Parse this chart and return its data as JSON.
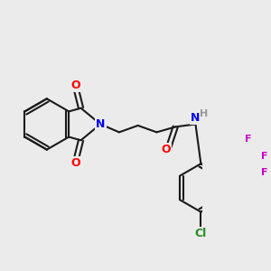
{
  "bg_color": "#ebebeb",
  "bond_color": "#1a1a1a",
  "bond_width": 1.5,
  "atom_colors": {
    "O": "#ff0000",
    "N_imide": "#0000ee",
    "N_amide": "#0000ee",
    "F": "#cc00cc",
    "Cl": "#228B22",
    "H": "#999999",
    "C": "#1a1a1a"
  },
  "font_size_atom": 9,
  "font_size_small": 8
}
